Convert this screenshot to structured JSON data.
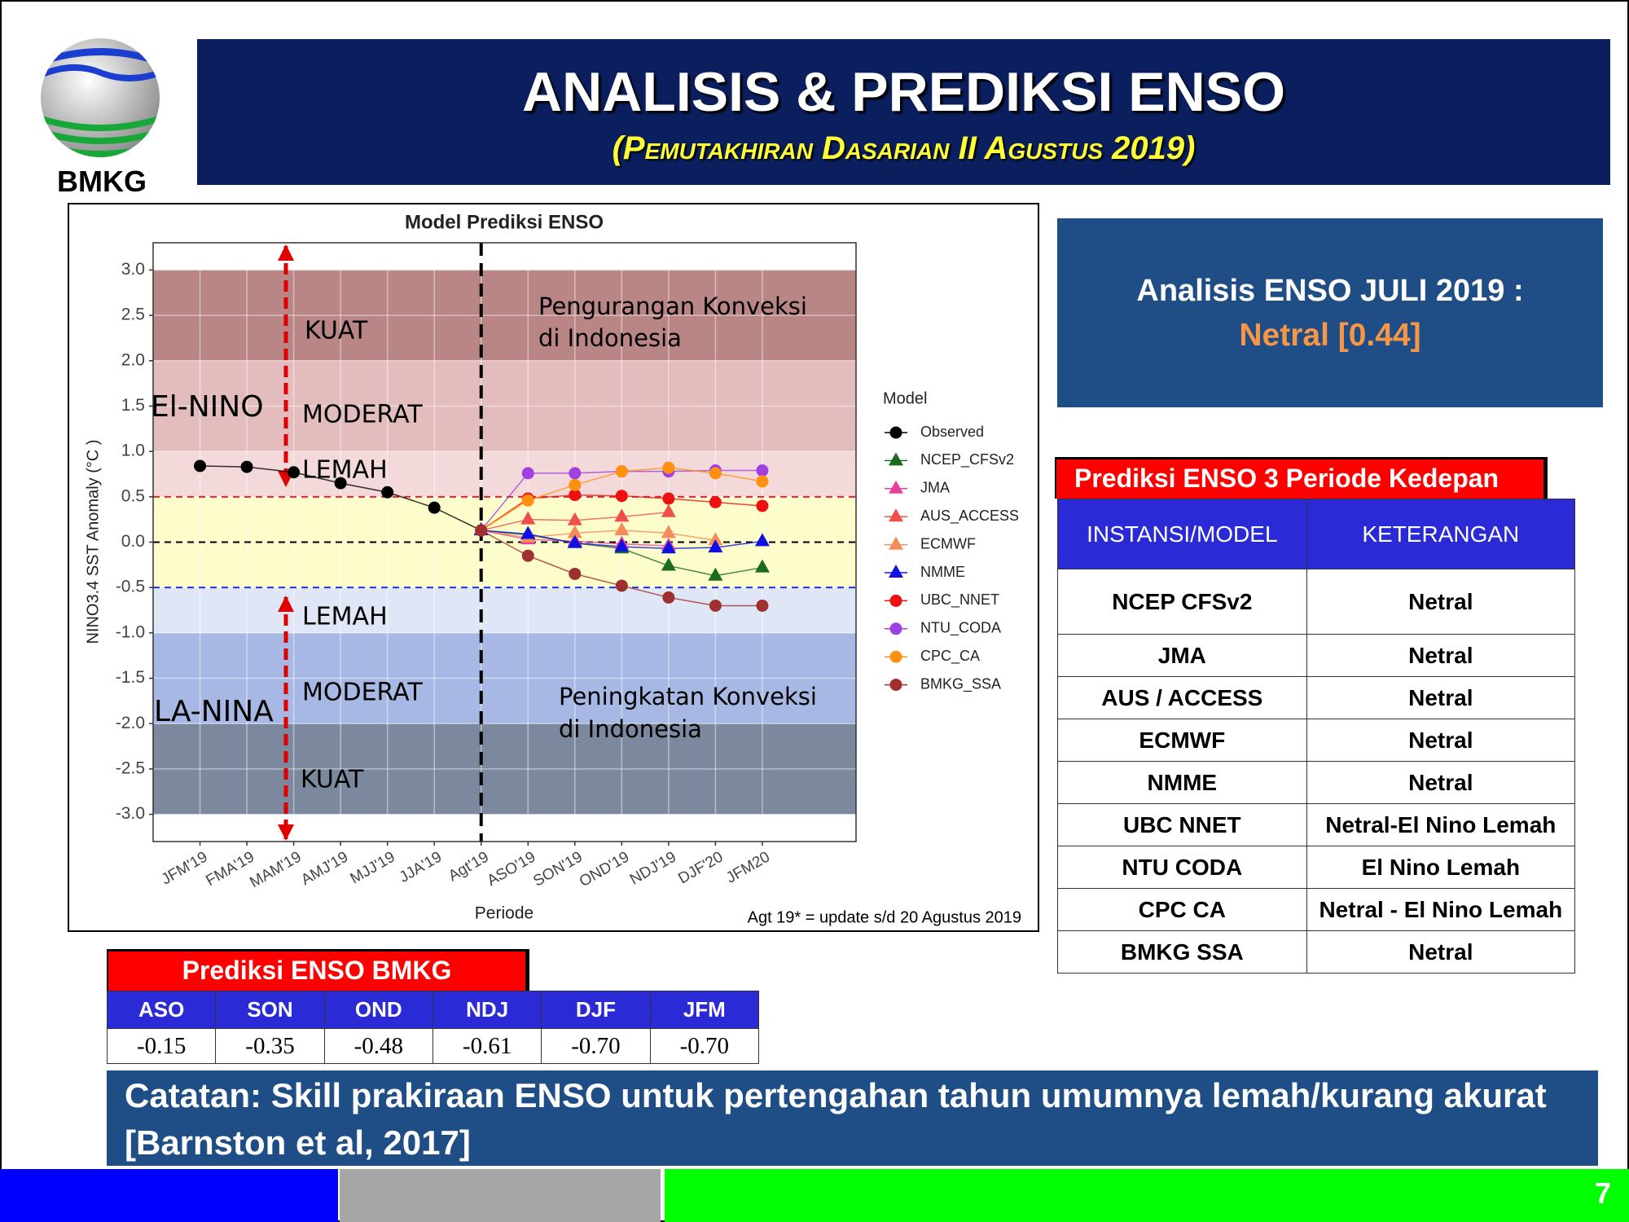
{
  "header": {
    "logo_text": "BMKG",
    "title": "ANALISIS & PREDIKSI ENSO",
    "subtitle": "(Pemutakhiran Dasarian II Agustus 2019)"
  },
  "chart_data": {
    "type": "line",
    "title": "Model Prediksi ENSO",
    "x_label": "Periode",
    "y_label": "NINO3.4 SST Anomaly (°C )",
    "note": "Agt 19* = update s/d 20 Agustus 2019",
    "legend_title": "Model",
    "legend": "right",
    "grid": true,
    "categories": [
      "JFM'19",
      "FMA'19",
      "MAM'19",
      "AMJ'19",
      "MJJ'19",
      "JJA'19",
      "Agt'19",
      "ASO'19",
      "SON'19",
      "OND'19",
      "NDJ'19",
      "DJF'20",
      "JFM20"
    ],
    "ylim": [
      -3.3,
      3.3
    ],
    "yticks": [
      {
        "value": 3,
        "label": "3.0"
      },
      2.5,
      {
        "value": 2,
        "label": "2.0"
      },
      1.5,
      {
        "value": 1,
        "label": "1.0"
      },
      0.5,
      {
        "value": 0,
        "label": "0.0"
      },
      -0.5,
      {
        "value": -1,
        "label": "-1.0"
      },
      -1.5,
      {
        "value": -2,
        "label": "-2.0"
      },
      -2.5,
      {
        "value": -3,
        "label": "-3.0"
      }
    ],
    "bands": [
      {
        "from": 2,
        "to": 3,
        "color": "#b98585"
      },
      {
        "from": 1,
        "to": 2,
        "color": "#e3bcbe"
      },
      {
        "from": 0.5,
        "to": 1,
        "color": "#f3d9da"
      },
      {
        "from": -0.5,
        "to": 0.5,
        "color": "#fdfccb"
      },
      {
        "from": -1,
        "to": -0.5,
        "color": "#dfe7f6"
      },
      {
        "from": -2,
        "to": -1,
        "color": "#a6b8e3"
      },
      {
        "from": -3,
        "to": -2,
        "color": "#7b889e"
      }
    ],
    "hlines": [
      {
        "value": 0.5,
        "color": "#e8202a"
      },
      {
        "value": 0,
        "color": "#000000"
      },
      {
        "value": -0.5,
        "color": "#2030e0"
      }
    ],
    "vline": "Agt'19",
    "annotations": [
      "KUAT",
      "MODERAT",
      "LEMAH",
      "El-NINO",
      "LEMAH",
      "MODERAT",
      "LA-NINA",
      "KUAT",
      "Pengurangan Konveksi",
      "di Indonesia",
      "Peningkatan Konveksi",
      "di Indonesia"
    ],
    "series": [
      {
        "name": "Observed",
        "color": "#000000",
        "marker": "circle",
        "values": [
          0.84,
          0.83,
          0.77,
          0.65,
          0.55,
          0.38,
          0.13,
          null,
          null,
          null,
          null,
          null,
          null
        ]
      },
      {
        "name": "NCEP_CFSv2",
        "color": "#1a6b1a",
        "marker": "triangle",
        "values": [
          null,
          null,
          null,
          null,
          null,
          null,
          0.13,
          0.08,
          -0.01,
          -0.07,
          -0.26,
          -0.37,
          -0.28
        ]
      },
      {
        "name": "JMA",
        "color": "#e6409a",
        "marker": "triangle",
        "values": [
          null,
          null,
          null,
          null,
          null,
          null,
          0.13,
          0.03,
          0.01,
          -0.02,
          -0.04,
          null,
          null
        ]
      },
      {
        "name": "AUS_ACCESS",
        "color": "#f0504a",
        "marker": "triangle",
        "values": [
          null,
          null,
          null,
          null,
          null,
          null,
          0.13,
          0.25,
          0.24,
          0.28,
          0.33,
          null,
          null
        ]
      },
      {
        "name": "ECMWF",
        "color": "#f58a5a",
        "marker": "triangle",
        "values": [
          null,
          null,
          null,
          null,
          null,
          null,
          0.13,
          0.05,
          0.1,
          0.13,
          0.1,
          0.02,
          null
        ]
      },
      {
        "name": "NMME",
        "color": "#1010e0",
        "marker": "triangle",
        "values": [
          null,
          null,
          null,
          null,
          null,
          null,
          0.13,
          0.09,
          -0.01,
          -0.05,
          -0.07,
          -0.06,
          0.01
        ]
      },
      {
        "name": "UBC_NNET",
        "color": "#ee1010",
        "marker": "circle",
        "values": [
          null,
          null,
          null,
          null,
          null,
          null,
          0.13,
          0.48,
          0.52,
          0.51,
          0.48,
          0.44,
          0.4
        ]
      },
      {
        "name": "NTU_CODA",
        "color": "#a040e0",
        "marker": "circle",
        "values": [
          null,
          null,
          null,
          null,
          null,
          null,
          0.13,
          0.76,
          0.76,
          0.78,
          0.78,
          0.79,
          0.79
        ]
      },
      {
        "name": "CPC_CA",
        "color": "#ff9010",
        "marker": "circle",
        "values": [
          null,
          null,
          null,
          null,
          null,
          null,
          0.13,
          0.46,
          0.63,
          0.78,
          0.82,
          0.76,
          0.67
        ]
      },
      {
        "name": "BMKG_SSA",
        "color": "#a03030",
        "marker": "circle",
        "values": [
          null,
          null,
          null,
          null,
          null,
          null,
          0.13,
          -0.15,
          -0.35,
          -0.48,
          -0.61,
          -0.7,
          -0.7
        ]
      }
    ]
  },
  "analysis": {
    "title": "Analisis ENSO JULI 2019 :",
    "value": "Netral [0.44]"
  },
  "forecast": {
    "label": "Prediksi ENSO 3 Periode Kedepan",
    "header": [
      "INSTANSI/MODEL",
      "KETERANGAN"
    ],
    "rows": [
      [
        "NCEP CFSv2",
        "Netral"
      ],
      [
        "JMA",
        "Netral"
      ],
      [
        "AUS / ACCESS",
        "Netral"
      ],
      [
        "ECMWF",
        "Netral"
      ],
      [
        "NMME",
        "Netral"
      ],
      [
        "UBC NNET",
        "Netral-El Nino Lemah"
      ],
      [
        "NTU CODA",
        "El Nino Lemah"
      ],
      [
        "CPC CA",
        "Netral - El Nino Lemah"
      ],
      [
        "BMKG SSA",
        "Netral"
      ]
    ]
  },
  "bmkg_forecast": {
    "label": "Prediksi ENSO BMKG",
    "header": [
      "ASO",
      "SON",
      "OND",
      "NDJ",
      "DJF",
      "JFM"
    ],
    "values": [
      "-0.15",
      "-0.35",
      "-0.48",
      "-0.61",
      "-0.70",
      "-0.70"
    ]
  },
  "note": "Catatan: Skill prakiraan ENSO untuk pertengahan tahun umumnya lemah/kurang akurat [Barnston et al, 2017]",
  "page_number": "7"
}
